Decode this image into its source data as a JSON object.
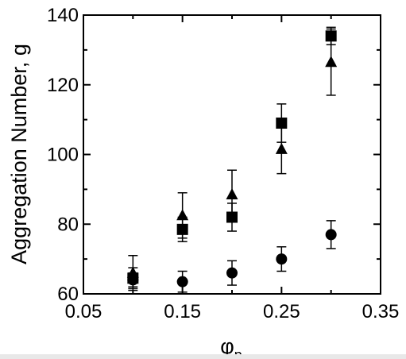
{
  "chart_data": {
    "type": "scatter",
    "xlabel": "φp",
    "xlabel_main": "φ",
    "xlabel_sub": "p",
    "ylabel": "Aggregation Number, g",
    "xlim": [
      0.05,
      0.35
    ],
    "ylim": [
      60,
      140
    ],
    "grid": false,
    "x_ticks": [
      0.05,
      0.15,
      0.25,
      0.35
    ],
    "x_tick_labels": [
      "0.05",
      "0.15",
      "0.25",
      "0.35"
    ],
    "y_ticks": [
      60,
      80,
      100,
      120,
      140
    ],
    "y_tick_labels": [
      "60",
      "80",
      "100",
      "120",
      "140"
    ],
    "series": [
      {
        "marker": "square",
        "points": [
          {
            "x": 0.1,
            "y": 64.5,
            "err": 3.0
          },
          {
            "x": 0.15,
            "y": 78.5,
            "err": 3.5
          },
          {
            "x": 0.2,
            "y": 82.0,
            "err": 4.0
          },
          {
            "x": 0.25,
            "y": 109.0,
            "err": 5.5
          },
          {
            "x": 0.3,
            "y": 134.0,
            "err": 2.5
          }
        ]
      },
      {
        "marker": "triangle",
        "points": [
          {
            "x": 0.1,
            "y": 66.0,
            "err": 5.0
          },
          {
            "x": 0.15,
            "y": 82.5,
            "err": 6.5
          },
          {
            "x": 0.2,
            "y": 88.5,
            "err": 7.0
          },
          {
            "x": 0.25,
            "y": 101.5,
            "err": 7.0
          },
          {
            "x": 0.3,
            "y": 126.5,
            "err": 9.5
          }
        ]
      },
      {
        "marker": "circle",
        "points": [
          {
            "x": 0.1,
            "y": 64.0,
            "err": 2.0
          },
          {
            "x": 0.15,
            "y": 63.5,
            "err": 3.0
          },
          {
            "x": 0.2,
            "y": 66.0,
            "err": 3.5
          },
          {
            "x": 0.25,
            "y": 70.0,
            "err": 3.5
          },
          {
            "x": 0.3,
            "y": 77.0,
            "err": 4.0
          }
        ]
      }
    ]
  }
}
